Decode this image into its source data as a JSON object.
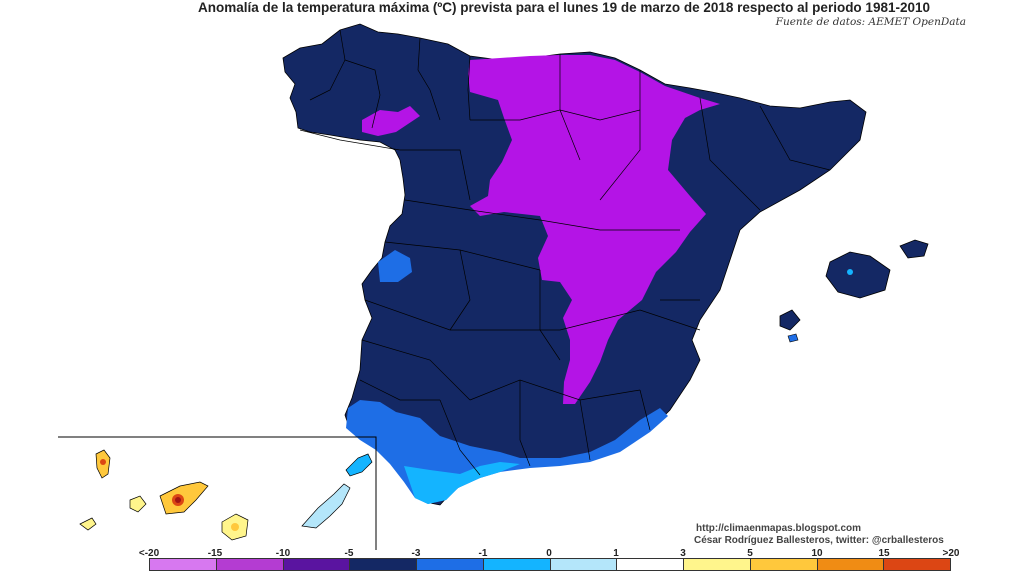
{
  "title": "Anomalía de la temperatura máxima (ºC) prevista para el lunes 19 de marzo de 2018 respecto al periodo 1981-2010",
  "source": "Fuente de datos: AEMET OpenData",
  "credits": {
    "url": "http://climaenmapas.blogspot.com",
    "author": "César Rodríguez Ballesteros, twitter: @crballesteros"
  },
  "legend": {
    "labels": [
      "<-20",
      "-15",
      "-10",
      "-5",
      "-3",
      "-1",
      "0",
      "1",
      "3",
      "5",
      "10",
      "15",
      ">20"
    ],
    "colors": [
      "#d778f0",
      "#b43cd2",
      "#5a14a0",
      "#142864",
      "#1e6ee6",
      "#14b4ff",
      "#b4e6fa",
      "#ffffff",
      "#fff58c",
      "#ffc83c",
      "#f08c14",
      "#dc4614",
      "#a01414",
      "#7a3c0a"
    ]
  },
  "map_colors": {
    "land_dark_navy": "#142864",
    "purple_zone": "#b414e6",
    "blue_coast": "#1e6ee6",
    "light_blue_coast": "#14b4ff",
    "borders": "#000000"
  }
}
